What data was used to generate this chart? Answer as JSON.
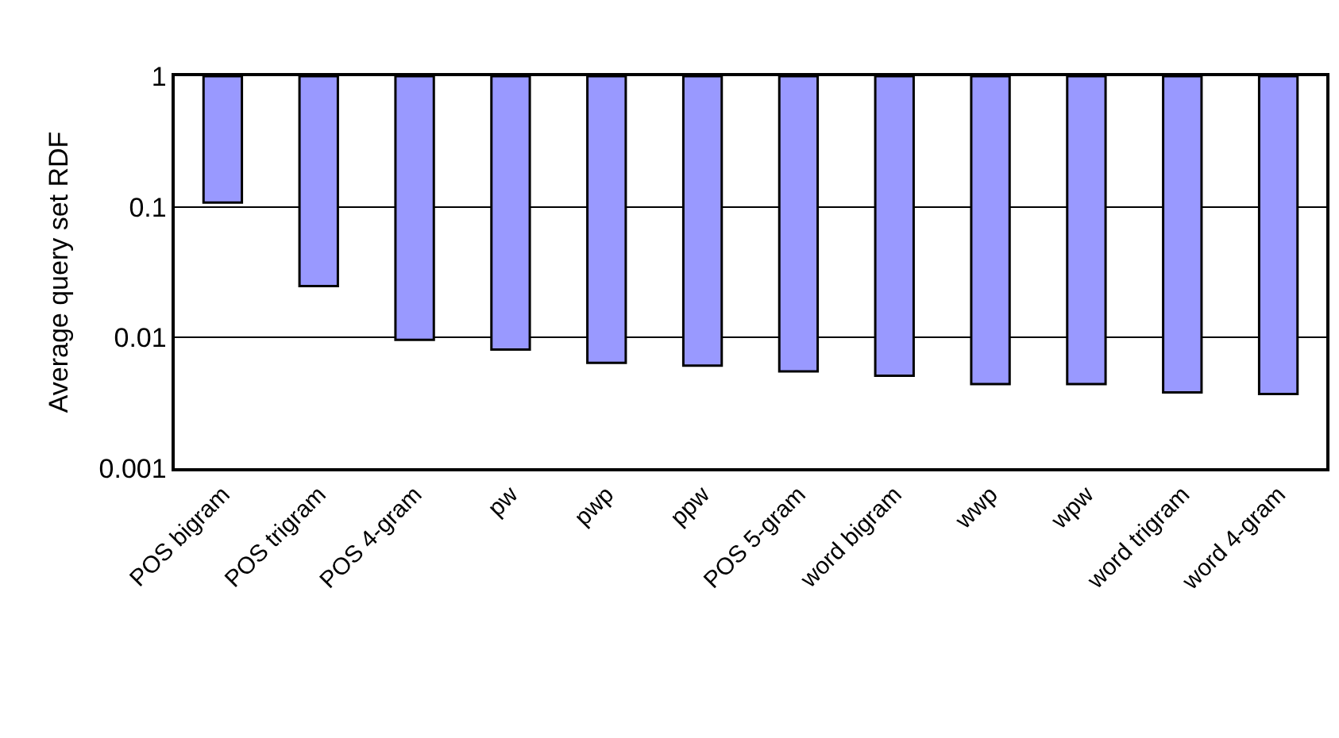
{
  "chart_data": {
    "type": "bar",
    "ylabel": "Average query set RDF",
    "categories": [
      "POS bigram",
      "POS trigram",
      "POS 4-gram",
      "pw",
      "pwp",
      "ppw",
      "POS 5-gram",
      "word bigram",
      "wwp",
      "wpw",
      "word trigram",
      "word 4-gram"
    ],
    "base": [
      1,
      1,
      1,
      1,
      1,
      1,
      1,
      1,
      1,
      1,
      1,
      1
    ],
    "values": [
      -0.892,
      -0.9752,
      -0.9904,
      -0.9919,
      -0.9936,
      -0.9939,
      -0.9945,
      -0.9949,
      -0.9956,
      -0.9956,
      -0.9962,
      -0.9963
    ],
    "color": "#9999ff",
    "log": true,
    "ylim": [
      0.001,
      1
    ],
    "yticks": [
      0.001,
      0.01,
      0.1,
      1
    ],
    "grid": "y",
    "legend": false
  }
}
